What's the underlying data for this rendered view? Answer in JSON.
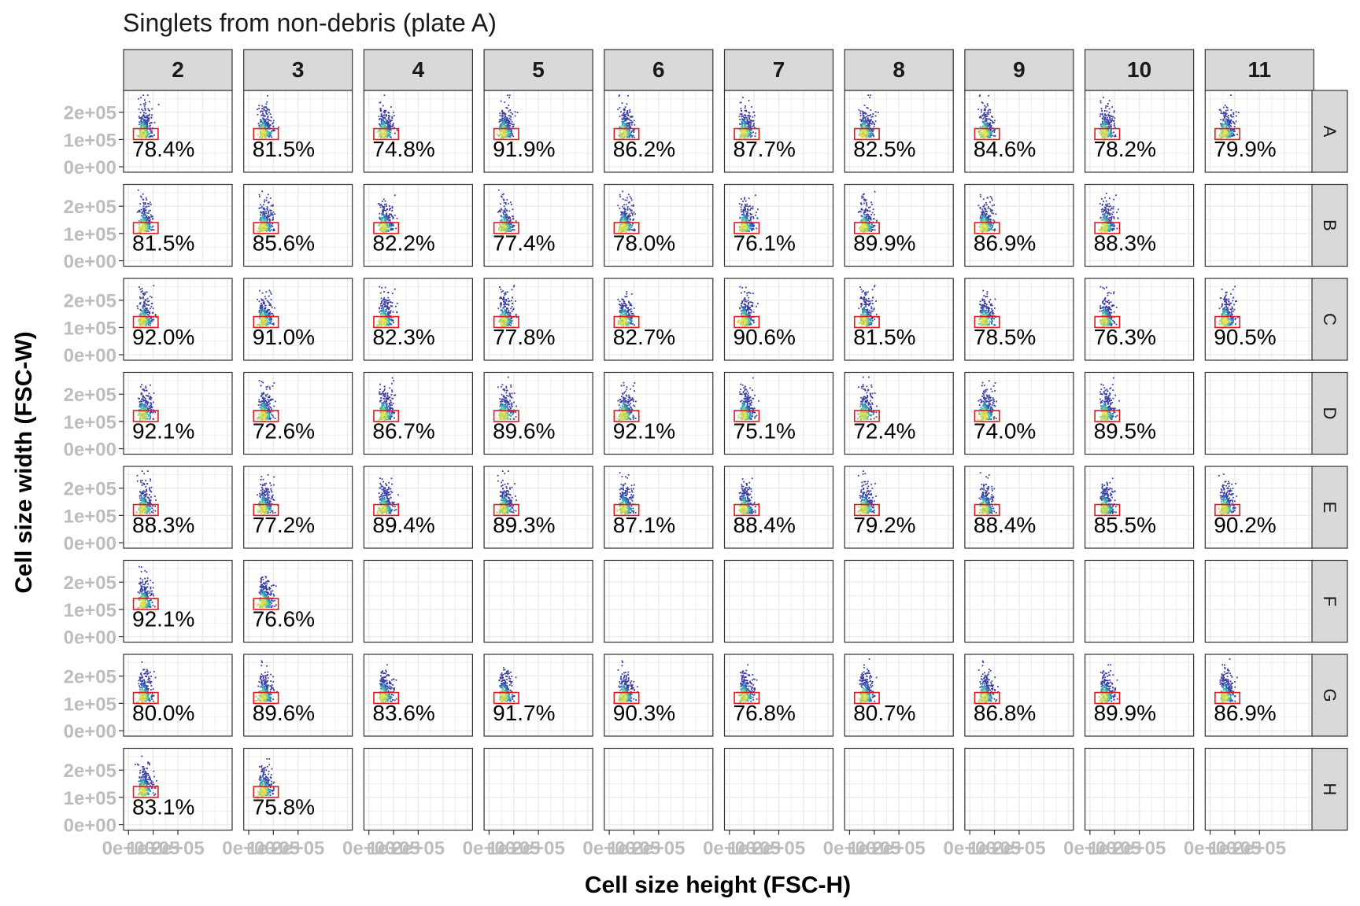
{
  "chart_data": {
    "type": "scatter",
    "subtype": "faceted 2D density (flow cytometry) with gate percentages",
    "title": "Singlets from non-debris (plate A)",
    "xlabel": "Cell size height (FSC-H)",
    "ylabel": "Cell size width (FSC-W)",
    "columns": [
      "2",
      "3",
      "4",
      "5",
      "6",
      "7",
      "8",
      "9",
      "10",
      "11"
    ],
    "rows": [
      "A",
      "B",
      "C",
      "D",
      "E",
      "F",
      "G",
      "H"
    ],
    "y_ticks": [
      "0e+00",
      "1e+05",
      "2e+05"
    ],
    "y_tick_values": [
      0,
      100000,
      200000
    ],
    "x_ticks": [
      "0e+00",
      "1e+05",
      "2e+05"
    ],
    "x_tick_values": [
      0,
      100000,
      200000
    ],
    "xlim": [
      -20000,
      420000
    ],
    "ylim": [
      -20000,
      280000
    ],
    "gate": {
      "x": [
        20000,
        120000
      ],
      "y": [
        100000,
        140000
      ],
      "color": "#e31a1c"
    },
    "percentages": [
      [
        "78.4%",
        "81.5%",
        "74.8%",
        "91.9%",
        "86.2%",
        "87.7%",
        "82.5%",
        "84.6%",
        "78.2%",
        "79.9%"
      ],
      [
        "81.5%",
        "85.6%",
        "82.2%",
        "77.4%",
        "78.0%",
        "76.1%",
        "89.9%",
        "86.9%",
        "88.3%",
        null
      ],
      [
        "92.0%",
        "91.0%",
        "82.3%",
        "77.8%",
        "82.7%",
        "90.6%",
        "81.5%",
        "78.5%",
        "76.3%",
        "90.5%"
      ],
      [
        "92.1%",
        "72.6%",
        "86.7%",
        "89.6%",
        "92.1%",
        "75.1%",
        "72.4%",
        "74.0%",
        "89.5%",
        null
      ],
      [
        "88.3%",
        "77.2%",
        "89.4%",
        "89.3%",
        "87.1%",
        "88.4%",
        "79.2%",
        "88.4%",
        "85.5%",
        "90.2%"
      ],
      [
        "92.1%",
        "76.6%",
        null,
        null,
        null,
        null,
        null,
        null,
        null,
        null
      ],
      [
        "80.0%",
        "89.6%",
        "83.6%",
        "91.7%",
        "90.3%",
        "76.8%",
        "80.7%",
        "86.8%",
        "89.9%",
        "86.9%"
      ],
      [
        "83.1%",
        "75.8%",
        null,
        null,
        null,
        null,
        null,
        null,
        null,
        null
      ]
    ]
  },
  "colors": {
    "strip_fill": "#d9d9d9",
    "grid": "#ebebeb",
    "gate": "#e31a1c",
    "density_low": "#3b3fa0",
    "density_mid": "#2bb3c4",
    "density_high": "#f2e34a"
  }
}
